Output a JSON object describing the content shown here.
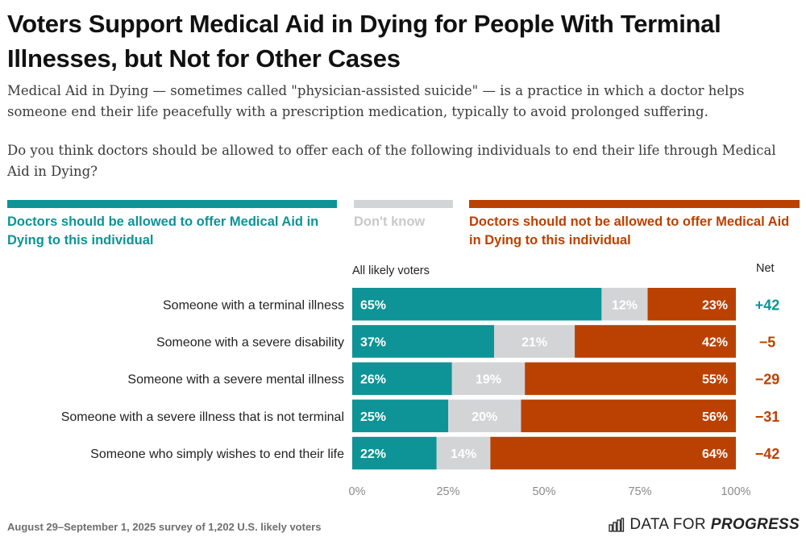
{
  "header": {
    "title": "Voters Support Medical Aid in Dying for People With Terminal Illnesses, but Not for Other Cases",
    "description": "Medical Aid in Dying — sometimes called \"physician-assisted suicide\" — is a practice in which a doctor helps someone end their life peacefully with a prescription medication, typically to avoid prolonged suffering.",
    "question": "Do you think doctors should be allowed to offer each of the following individuals to end their life through Medical Aid in Dying?"
  },
  "colors": {
    "support": "#0e9396",
    "dont_know": "#d3d4d6",
    "oppose": "#ba4102",
    "dont_know_text": "#c8c9cb"
  },
  "chart_data": {
    "type": "bar",
    "orientation": "horizontal",
    "stacked": true,
    "title": "Voters Support Medical Aid in Dying for People With Terminal Illnesses, but Not for Other Cases",
    "subgroup_label": "All likely voters",
    "net_label": "Net",
    "categories": [
      "Someone with a terminal illness",
      "Someone with a severe disability",
      "Someone with a severe mental illness",
      "Someone with a severe illness that is not terminal",
      "Someone who simply wishes to end their life"
    ],
    "series": [
      {
        "name": "Doctors should be allowed to offer Medical Aid in Dying to this individual",
        "key": "support",
        "values": [
          65,
          37,
          26,
          25,
          22
        ]
      },
      {
        "name": "Don't know",
        "key": "dont_know",
        "values": [
          12,
          21,
          19,
          20,
          14
        ]
      },
      {
        "name": "Doctors should not be allowed to offer Medical Aid in Dying to this individual",
        "key": "oppose",
        "values": [
          23,
          42,
          55,
          56,
          64
        ]
      }
    ],
    "net": [
      "+42",
      "−5",
      "−29",
      "−31",
      "−42"
    ],
    "net_values": [
      42,
      -5,
      -29,
      -31,
      -42
    ],
    "xlim": [
      0,
      100
    ],
    "xticks": [
      0,
      25,
      50,
      75,
      100
    ],
    "xtick_labels": [
      "0%",
      "25%",
      "50%",
      "75%",
      "100%"
    ],
    "legend_position": "top",
    "grid": false
  },
  "footer": {
    "source": "August 29–September 1, 2025 survey of 1,202 U.S. likely voters",
    "brand_light": "DATA FOR",
    "brand_bold": "PROGRESS"
  }
}
